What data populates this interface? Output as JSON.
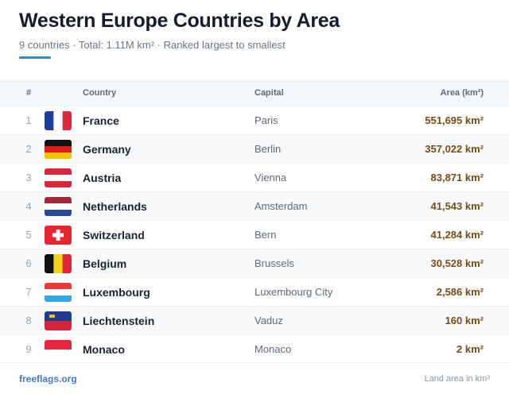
{
  "header": {
    "title": "Western Europe Countries by Area",
    "subtitle": "9 countries · Total: 1.11M km² · Ranked largest to smallest"
  },
  "table": {
    "columns": [
      "#",
      "Country",
      "Capital",
      "Area (km²)"
    ],
    "rows": [
      [
        "1",
        "France",
        "Paris",
        "551,695 km²"
      ],
      [
        "2",
        "Germany",
        "Berlin",
        "357,022 km²"
      ],
      [
        "3",
        "Austria",
        "Vienna",
        "83,871 km²"
      ],
      [
        "4",
        "Netherlands",
        "Amsterdam",
        "41,543 km²"
      ],
      [
        "5",
        "Switzerland",
        "Bern",
        "41,284 km²"
      ],
      [
        "6",
        "Belgium",
        "Brussels",
        "30,528 km²"
      ],
      [
        "7",
        "Luxembourg",
        "Luxembourg City",
        "2,586 km²"
      ],
      [
        "8",
        "Liechtenstein",
        "Vaduz",
        "160 km²"
      ],
      [
        "9",
        "Monaco",
        "Monaco",
        "2 km²"
      ]
    ]
  },
  "footer": {
    "source": "freeflags.org",
    "note": "Land area in km²"
  }
}
